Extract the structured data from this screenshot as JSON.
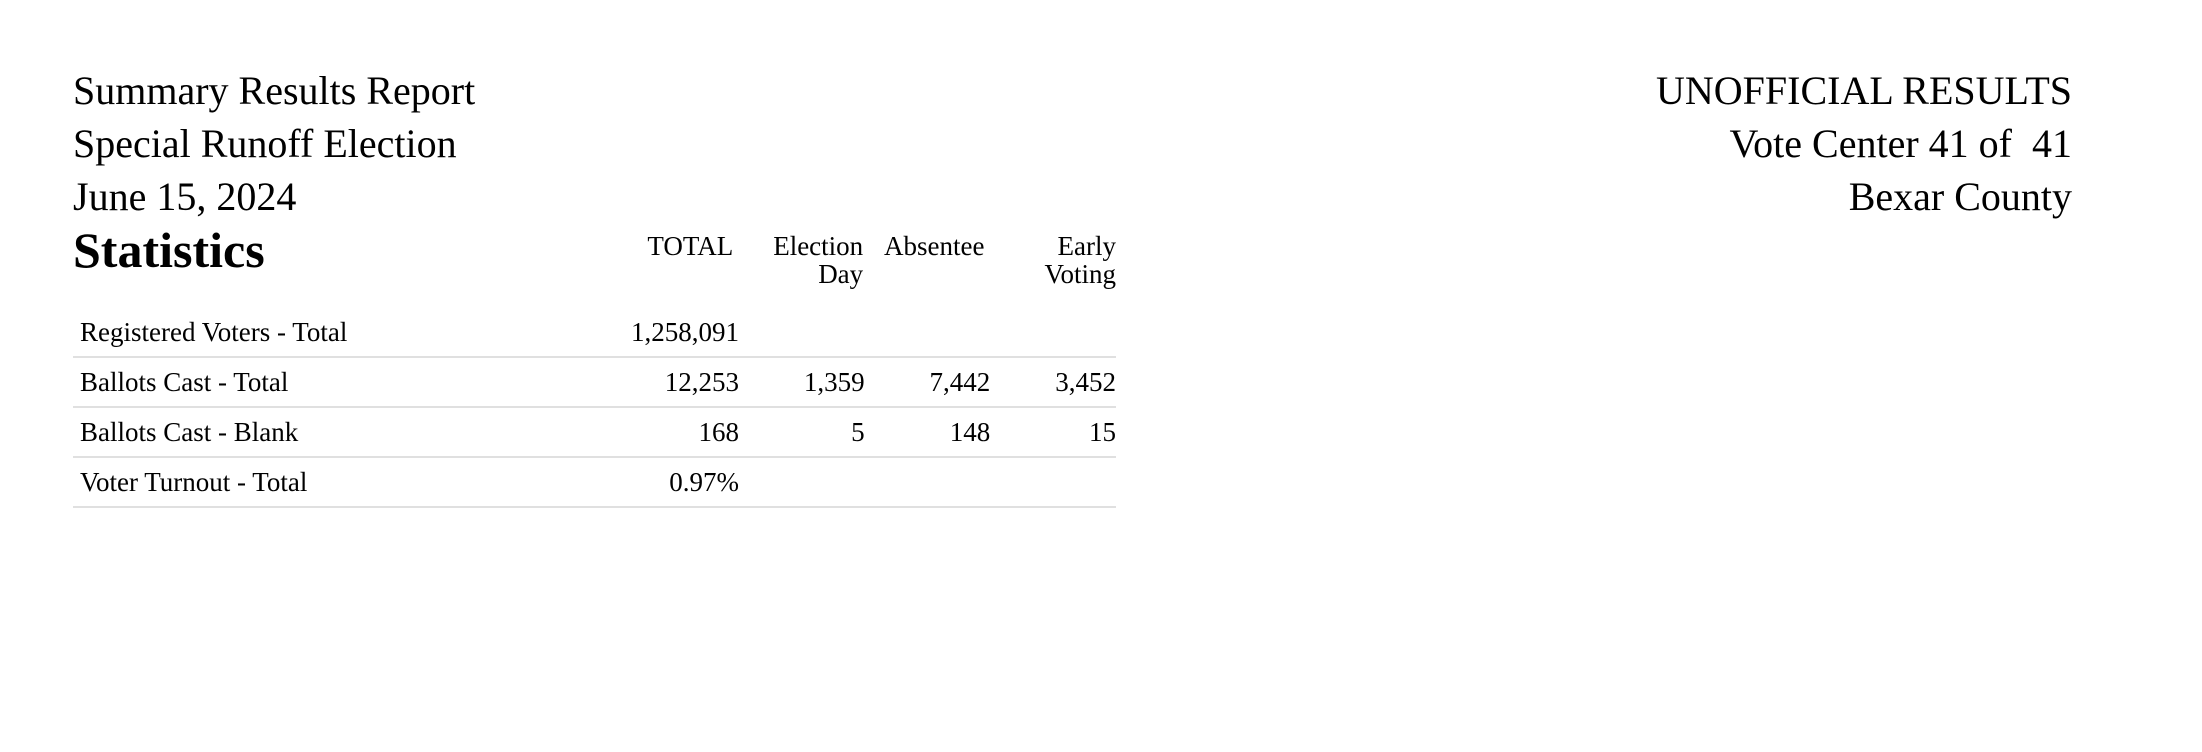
{
  "header": {
    "left": [
      "Summary Results Report",
      "Special Runoff Election",
      "June 15, 2024"
    ],
    "right": [
      "UNOFFICIAL RESULTS",
      "Vote Center 41 of  41",
      "Bexar County"
    ]
  },
  "statistics": {
    "title": "Statistics",
    "columns": [
      "TOTAL",
      "Election Day",
      "Absentee",
      "Early Voting"
    ],
    "rows": [
      {
        "label": "Registered Voters - Total",
        "values": [
          "1,258,091",
          "",
          "",
          ""
        ]
      },
      {
        "label": "Ballots Cast - Total",
        "values": [
          "12,253",
          "1,359",
          "7,442",
          "3,452"
        ]
      },
      {
        "label": "Ballots Cast - Blank",
        "values": [
          "168",
          "5",
          "148",
          "15"
        ]
      },
      {
        "label": "Voter Turnout - Total",
        "values": [
          "0.97%",
          "",
          "",
          ""
        ]
      }
    ]
  }
}
